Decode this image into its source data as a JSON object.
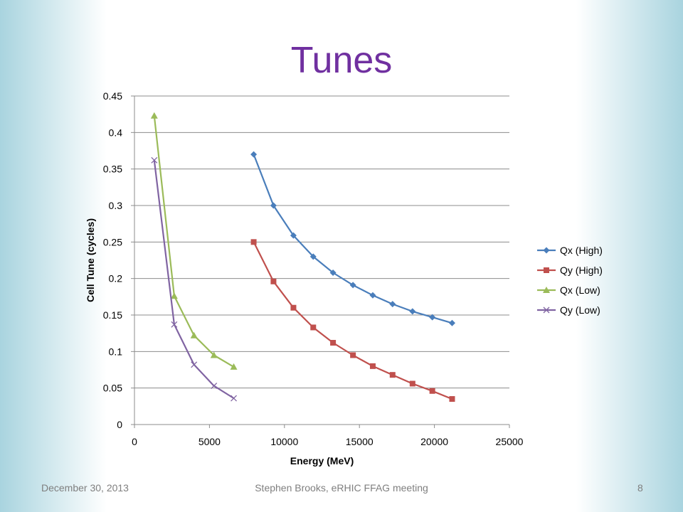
{
  "slide": {
    "title": "Tunes",
    "footer_date": "December 30, 2013",
    "footer_center": "Stephen Brooks, eRHIC FFAG meeting",
    "page_number": "8"
  },
  "chart_data": {
    "type": "line",
    "xlabel": "Energy (MeV)",
    "ylabel": "Cell Tune (cycles)",
    "xlim": [
      0,
      25000
    ],
    "ylim": [
      0,
      0.45
    ],
    "xticks": [
      0,
      5000,
      10000,
      15000,
      20000,
      25000
    ],
    "yticks": [
      0,
      0.05,
      0.1,
      0.15,
      0.2,
      0.25,
      0.3,
      0.35,
      0.4,
      0.45
    ],
    "grid": "horizontal",
    "legend_position": "right",
    "series": [
      {
        "name": "Qx (High)",
        "color": "#4a7ebb",
        "marker": "diamond",
        "x": [
          7950,
          9270,
          10600,
          11920,
          13240,
          14570,
          15890,
          17210,
          18540,
          19860,
          21180
        ],
        "y": [
          0.37,
          0.3,
          0.259,
          0.23,
          0.208,
          0.191,
          0.177,
          0.165,
          0.155,
          0.147,
          0.139
        ]
      },
      {
        "name": "Qy (High)",
        "color": "#c0504d",
        "marker": "square",
        "x": [
          7950,
          9270,
          10600,
          11920,
          13240,
          14570,
          15890,
          17210,
          18540,
          19860,
          21180
        ],
        "y": [
          0.25,
          0.196,
          0.16,
          0.133,
          0.112,
          0.095,
          0.08,
          0.068,
          0.056,
          0.046,
          0.035
        ]
      },
      {
        "name": "Qx (Low)",
        "color": "#9bbb59",
        "marker": "triangle",
        "x": [
          1320,
          2650,
          3970,
          5300,
          6620
        ],
        "y": [
          0.423,
          0.176,
          0.122,
          0.095,
          0.079
        ]
      },
      {
        "name": "Qy (Low)",
        "color": "#8064a2",
        "marker": "x",
        "x": [
          1320,
          2650,
          3970,
          5300,
          6620
        ],
        "y": [
          0.362,
          0.137,
          0.082,
          0.053,
          0.036
        ]
      }
    ]
  }
}
